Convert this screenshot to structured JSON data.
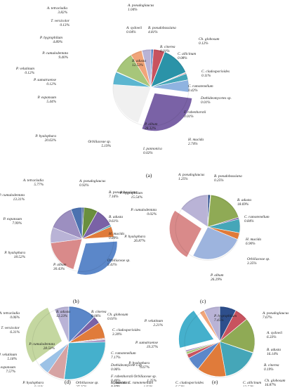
{
  "figure": {
    "panels": [
      {
        "letter": "(a)",
        "chart_data": {
          "type": "pie",
          "title": "",
          "slices": [
            {
              "label": "A. pseudoglaucus",
              "value": 1.04,
              "color": "#5b87c9"
            },
            {
              "label": "A. sydowii",
              "value": 0.04,
              "color": "#2e4f8c"
            },
            {
              "label": "B. pseudobassiana",
              "value": 4.81,
              "color": "#c8535f"
            },
            {
              "label": "Ch. globosum",
              "value": 0.12,
              "color": "#5e8f3a"
            },
            {
              "label": "B. cinerea",
              "value": 0.01,
              "color": "#e0b43c"
            },
            {
              "label": "B. adusta",
              "value": 12.53,
              "color": "#2b93a8"
            },
            {
              "label": "C. allicinum",
              "value": 0.08,
              "color": "#a85a2a"
            },
            {
              "label": "C. cladosporioides",
              "value": 0.11,
              "color": "#7d9bd1"
            },
            {
              "label": "C. ramotenellum",
              "value": 0.42,
              "color": "#b86b70"
            },
            {
              "label": "Dothideomycetes sp.",
              "value": 0.01,
              "color": "#6a8f4c"
            },
            {
              "label": "F. rabenhorstii",
              "value": 0.01,
              "color": "#9c7fb8"
            },
            {
              "label": "H. mucida",
              "value": 2.74,
              "color": "#45a6b8"
            },
            {
              "label": "I. pannonica",
              "value": 0.02,
              "color": "#e69b46"
            },
            {
              "label": "Orbiliaceae sp.",
              "value": 5.19,
              "color": "#8fb3e0"
            },
            {
              "label": "P. album",
              "value": 28.32,
              "color": "#7a62a6",
              "exploded": true
            },
            {
              "label": "P. hyalophora",
              "value": 20.63,
              "color": "#f0f0f0"
            },
            {
              "label": "P. expansum",
              "value": 5.44,
              "color": "#5cb6d0"
            },
            {
              "label": "P. sumatraense",
              "value": 0.12,
              "color": "#e0a15a"
            },
            {
              "label": "P. velutinum",
              "value": 0.12,
              "color": "#4f6fa8"
            },
            {
              "label": "P. cumulodentata",
              "value": 9.4,
              "color": "#a7c67a"
            },
            {
              "label": "P. hygrophilum",
              "value": 4.89,
              "color": "#f1a57a"
            },
            {
              "label": "T. versicolor",
              "value": 0.13,
              "color": "#8a76b0"
            },
            {
              "label": "A. tetracladia",
              "value": 3.82,
              "color": "#b9b3d6"
            }
          ]
        },
        "labels": [
          {
            "name": "A. tetracladia",
            "pct": "3.82%"
          },
          {
            "name": "A. pseudoglaucus",
            "pct": "1.04%"
          },
          {
            "name": "T. versicolor",
            "pct": "0.13%"
          },
          {
            "name": "A. sydowii",
            "pct": "0.04%"
          },
          {
            "name": "B. pseudobassiana",
            "pct": "4.81%"
          },
          {
            "name": "P. hygrophilum",
            "pct": "4.89%"
          },
          {
            "name": "Ch. globosum",
            "pct": "0.12%"
          },
          {
            "name": "B. cinerea",
            "pct": "0.01%"
          },
          {
            "name": "P. cumulodentata",
            "pct": "9.40%"
          },
          {
            "name": "C. allicinum",
            "pct": "0.08%"
          },
          {
            "name": "P. velutinum",
            "pct": "0.12%"
          },
          {
            "name": "B. adusta",
            "pct": "12.53%"
          },
          {
            "name": "C. cladosporioides",
            "pct": "0.11%"
          },
          {
            "name": "P. sumatraense",
            "pct": "0.12%"
          },
          {
            "name": "C. ramotenellum",
            "pct": "0.42%"
          },
          {
            "name": "P. expansum",
            "pct": "5.44%"
          },
          {
            "name": "Dothideomycetes sp.",
            "pct": "0.01%"
          },
          {
            "name": "F. rabenhorstii",
            "pct": "0.01%"
          },
          {
            "name": "P. hyalophara",
            "pct": "20.63%"
          },
          {
            "name": "P. album",
            "pct": "28.32%"
          },
          {
            "name": "H. mucida",
            "pct": "2.74%"
          },
          {
            "name": "Orbiliaceae sp.",
            "pct": "5.19%"
          },
          {
            "name": "I. pannonica",
            "pct": "0.02%"
          }
        ]
      },
      {
        "letter": "(b)",
        "chart_data": {
          "type": "pie",
          "title": "",
          "slices": [
            {
              "label": "A. pseudoglaucus",
              "value": 0.92,
              "color": "#2e4f8c"
            },
            {
              "label": "B. pseudobassiana",
              "value": 7.16,
              "color": "#6a8f3e"
            },
            {
              "label": "B. adusta",
              "value": 9.61,
              "color": "#7a62a6"
            },
            {
              "label": "H. mucida",
              "value": 0.89,
              "color": "#45a6b8"
            },
            {
              "label": "Orbiliaceae sp.",
              "value": 5.41,
              "color": "#e07b3a"
            },
            {
              "label": "P. album",
              "value": 30.43,
              "color": "#5b87c9",
              "exploded": true
            },
            {
              "label": "P. hyalophara",
              "value": 18.52,
              "color": "#d98a8a"
            },
            {
              "label": "P. expansum",
              "value": 7.99,
              "color": "#b9b3d6"
            },
            {
              "label": "P. cumulodentata",
              "value": 13.31,
              "color": "#9c8fc0"
            },
            {
              "label": "A. tetracladia",
              "value": 5.77,
              "color": "#4c72b0"
            }
          ]
        },
        "labels": [
          {
            "name": "A. tetracladia",
            "pct": "5.77%"
          },
          {
            "name": "A. pseudoglaucus",
            "pct": "0.92%"
          },
          {
            "name": "P. cumulodentata",
            "pct": "13.31%"
          },
          {
            "name": "B. pseudobassiana",
            "pct": "7.16%"
          },
          {
            "name": "P. expansum",
            "pct": "7.99%"
          },
          {
            "name": "B. adusta",
            "pct": "9.61%"
          },
          {
            "name": "H. mucida",
            "pct": "0.89%"
          },
          {
            "name": "P. hyalophara",
            "pct": "18.52%"
          },
          {
            "name": "Orbiliaceae sp.",
            "pct": "5.41%"
          },
          {
            "name": "P. album",
            "pct": "30.43%"
          }
        ]
      },
      {
        "letter": "(c)",
        "chart_data": {
          "type": "pie",
          "title": "",
          "slices": [
            {
              "label": "A. pseudoglaucus",
              "value": 1.25,
              "color": "#2e4f8c"
            },
            {
              "label": "B. pseudobassiana",
              "value": 0.25,
              "color": "#c8535f"
            },
            {
              "label": "B. adusta",
              "value": 18.69,
              "color": "#8faa55"
            },
            {
              "label": "C. ramotenellum",
              "value": 0.84,
              "color": "#7a62a6"
            },
            {
              "label": "H. mucida",
              "value": 6.9,
              "color": "#45a6b8"
            },
            {
              "label": "Orbiliaceae sp.",
              "value": 3.35,
              "color": "#e07b3a"
            },
            {
              "label": "P. album",
              "value": 26.29,
              "color": "#9db4de"
            },
            {
              "label": "P. hyalophara",
              "value": 26.87,
              "color": "#d98a8a",
              "exploded": true
            },
            {
              "label": "P. cumulodentata",
              "value": 0.02,
              "color": "#a7c67a"
            },
            {
              "label": "P. hygrophilum",
              "value": 15.54,
              "color": "#b9b3d6"
            }
          ]
        },
        "labels": [
          {
            "name": "A. pseudoglaucus",
            "pct": "1.25%"
          },
          {
            "name": "P. hygrophilum",
            "pct": "15.54%"
          },
          {
            "name": "B. pseudobassiana",
            "pct": "0.25%"
          },
          {
            "name": "P. cumulodentata",
            "pct": "0.02%"
          },
          {
            "name": "B. adusta",
            "pct": "18.69%"
          },
          {
            "name": "C. ramotenellum",
            "pct": "0.84%"
          },
          {
            "name": "P. hyalophara",
            "pct": "26.87%"
          },
          {
            "name": "H. mucida",
            "pct": "6.90%"
          },
          {
            "name": "Orbiliaceae sp.",
            "pct": "3.35%"
          },
          {
            "name": "P. album",
            "pct": "26.29%"
          }
        ]
      },
      {
        "letter": "(d)",
        "chart_data": {
          "type": "pie",
          "title": "",
          "slices": [
            {
              "label": "B. adusta",
              "value": 12.23,
              "color": "#5b87c9"
            },
            {
              "label": "B. cinerea",
              "value": 0.06,
              "color": "#c8535f"
            },
            {
              "label": "Ch. globosum",
              "value": 0.01,
              "color": "#6a8f3e"
            },
            {
              "label": "C. cladosporioides",
              "value": 3.3,
              "color": "#7a62a6"
            },
            {
              "label": "C. ramotenellum",
              "value": 7.17,
              "color": "#e07b3a"
            },
            {
              "label": "Dothideomycetes sp.",
              "value": 0.06,
              "color": "#7d9bd1"
            },
            {
              "label": "F. rabenhorstii",
              "value": 0.46,
              "color": "#b86b70"
            },
            {
              "label": "H. mucida",
              "value": 0.17,
              "color": "#8faa55"
            },
            {
              "label": "I. pannonica",
              "value": 1.02,
              "color": "#9c7fb8"
            },
            {
              "label": "Orbiliaceae sp.",
              "value": 27.25,
              "color": "#45b0cc"
            },
            {
              "label": "P. hyalophara",
              "value": 0.11,
              "color": "#e0a15a"
            },
            {
              "label": "P. expansum",
              "value": 7.57,
              "color": "#d6a3a3"
            },
            {
              "label": "P. velutinum",
              "value": 5.18,
              "color": "#9cc2e6"
            },
            {
              "label": "P. cumulodentata",
              "value": 28.5,
              "color": "#c4d7a0",
              "exploded": true
            },
            {
              "label": "T. versicolor",
              "value": 6.31,
              "color": "#b9b3d6"
            },
            {
              "label": "A. tetracladia",
              "value": 0.06,
              "color": "#2e4f8c"
            }
          ]
        },
        "labels": [
          {
            "name": "A. tetracladia",
            "pct": "0.06%"
          },
          {
            "name": "B. adusta",
            "pct": "12.23%"
          },
          {
            "name": "B. cinerea",
            "pct": "0.06%"
          },
          {
            "name": "Ch. globosum",
            "pct": "0.01%"
          },
          {
            "name": "T. versicolor",
            "pct": "6.31%"
          },
          {
            "name": "C. cladosporioides",
            "pct": "3.30%"
          },
          {
            "name": "P. cumulodentata",
            "pct": "28.50%"
          },
          {
            "name": "C. ramotenellum",
            "pct": "7.17%"
          },
          {
            "name": "Dothideomycete s sp.",
            "pct": "0.06%"
          },
          {
            "name": "P. velutinum",
            "pct": "5.18%"
          },
          {
            "name": "F. rabenhorstii",
            "pct": "0.46%"
          },
          {
            "name": "P. expansum",
            "pct": "7.57%"
          },
          {
            "name": "H. mucida",
            "pct": "0.17%"
          },
          {
            "name": "P. hyalophara",
            "pct": "0.11%"
          },
          {
            "name": "Orbiliaceae sp.",
            "pct": "27.25%"
          },
          {
            "name": "I. pannonica",
            "pct": "1.02%"
          }
        ]
      },
      {
        "letter": "(e)",
        "chart_data": {
          "type": "pie",
          "title": "",
          "slices": [
            {
              "label": "A. pseudoglaucus",
              "value": 7.67,
              "color": "#2e4f8c"
            },
            {
              "label": "A. sydowii",
              "value": 6.33,
              "color": "#c8535f"
            },
            {
              "label": "B. adusta",
              "value": 16.14,
              "color": "#8faa55"
            },
            {
              "label": "B. cinerea",
              "value": 0.19,
              "color": "#7a62a6"
            },
            {
              "label": "Ch. globosum",
              "value": 16.87,
              "color": "#45a6b8"
            },
            {
              "label": "C. allicinum",
              "value": 13.52,
              "color": "#e07b3a"
            },
            {
              "label": "C. cladosporioides",
              "value": 6.52,
              "color": "#5b87c9"
            },
            {
              "label": "C. ramotenellum",
              "value": 1.92,
              "color": "#c8535f"
            },
            {
              "label": "Orbiliaceae sp.",
              "value": 1.25,
              "color": "#a7c67a"
            },
            {
              "label": "P. hyalophara",
              "value": 0.67,
              "color": "#9c7fb8"
            },
            {
              "label": "P. sumatraense",
              "value": 19.37,
              "color": "#45b0cc",
              "exploded": true
            },
            {
              "label": "P. velutinum",
              "value": 2.21,
              "color": "#f1a57a"
            },
            {
              "label": "P. hygrophilum",
              "value": 7.45,
              "color": "#b9b3d6"
            }
          ]
        },
        "labels": [
          {
            "name": "P. hygrophilum",
            "pct": "7.45%"
          },
          {
            "name": "A. pseudoglaucus",
            "pct": "7.67%"
          },
          {
            "name": "P. velutinum",
            "pct": "2.21%"
          },
          {
            "name": "A. sydowii",
            "pct": "6.33%"
          },
          {
            "name": "P. sumatraense",
            "pct": "19.37%"
          },
          {
            "name": "B. adusta",
            "pct": "16.14%"
          },
          {
            "name": "B. cinerea",
            "pct": "0.19%"
          },
          {
            "name": "P. hyalophara",
            "pct": "0.67%"
          },
          {
            "name": "Orbiliaceae sp.",
            "pct": "1.25%"
          },
          {
            "name": "Ch. globosum",
            "pct": "16.87%"
          },
          {
            "name": "C. ramotenellum",
            "pct": "1.92%"
          },
          {
            "name": "C. cladosporioides",
            "pct": "6.52%"
          },
          {
            "name": "C. allicinum",
            "pct": "13.52%"
          }
        ]
      }
    ]
  }
}
